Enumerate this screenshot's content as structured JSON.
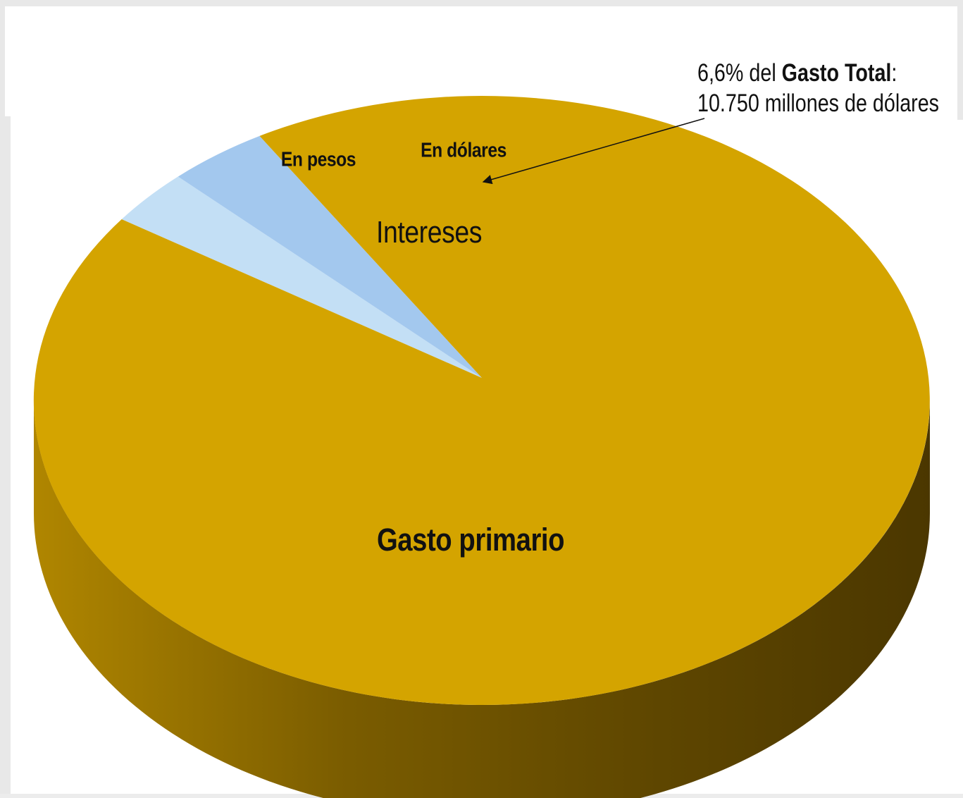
{
  "chart_data": {
    "type": "pie",
    "style": "3d",
    "slices": [
      {
        "name": "Gasto primario",
        "value": 93.4,
        "color": "#d4a400"
      },
      {
        "name": "En pesos",
        "value": 3.0,
        "color": "#c3dff5"
      },
      {
        "name": "En dólares",
        "value": 3.6,
        "color": "#a3c8ee"
      }
    ],
    "group_label": "Intereses",
    "annotation": {
      "line1_prefix": "6,6% del ",
      "line1_bold": "Gasto Total",
      "line1_suffix": ":",
      "line2": "10.750 millones de dólares",
      "points_to": "En dólares"
    },
    "side_color_light": "#a07a00",
    "side_color_dark": "#4f3a00"
  }
}
